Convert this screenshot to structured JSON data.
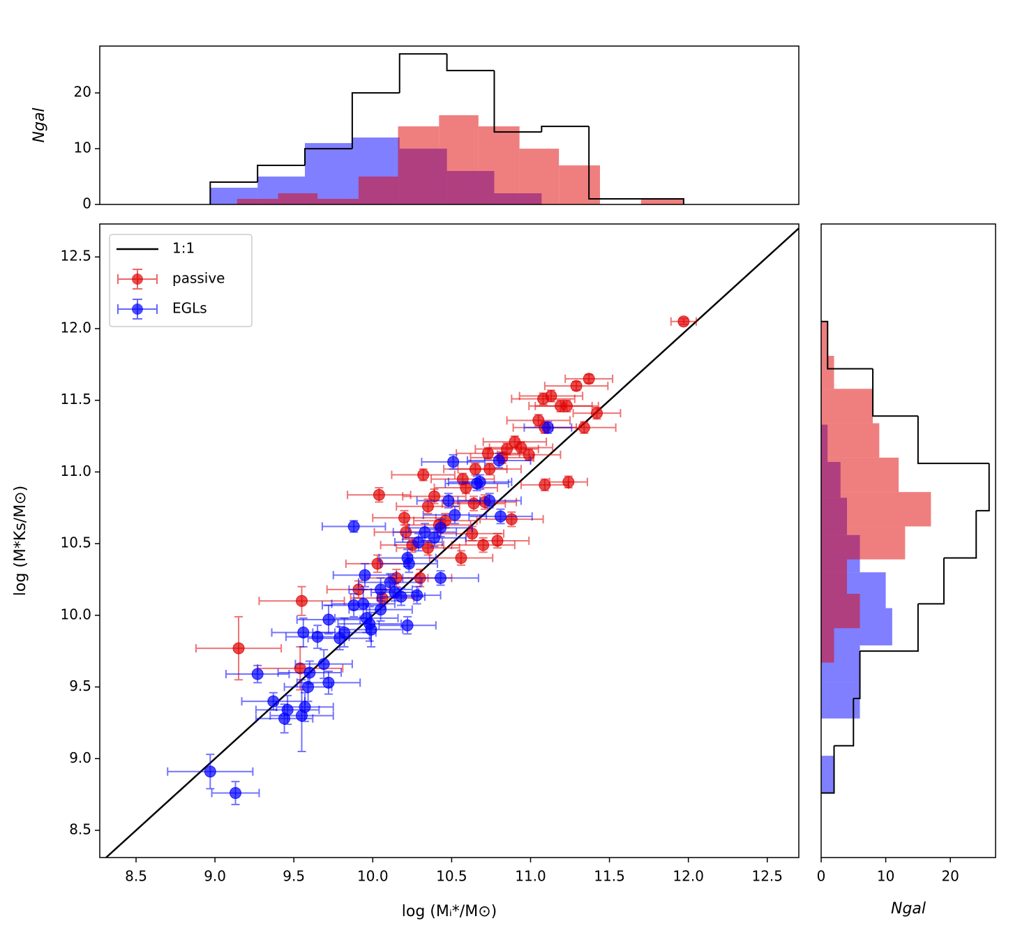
{
  "chart_data": [
    {
      "type": "scatter",
      "xlabel": "log (Mᵢ*/M⊙)",
      "ylabel": "log (M*Ks/M⊙)",
      "xlim": [
        8.27,
        12.7
      ],
      "ylim": [
        8.31,
        12.73
      ],
      "xticks": [
        8.5,
        {
          "value": 9,
          "label": "9.0"
        },
        9.5,
        {
          "value": 10,
          "label": "10.0"
        },
        10.5,
        {
          "value": 11,
          "label": "11.0"
        },
        11.5,
        {
          "value": 12,
          "label": "12.0"
        },
        12.5
      ],
      "yticks": [
        8.5,
        {
          "value": 9,
          "label": "9.0"
        },
        9.5,
        {
          "value": 10,
          "label": "10.0"
        },
        10.5,
        {
          "value": 11,
          "label": "11.0"
        },
        11.5,
        {
          "value": 12,
          "label": "12.0"
        },
        12.5
      ],
      "legend": "upper left",
      "lines": [
        {
          "name": "1:1",
          "color": "#000000"
        }
      ],
      "series": [
        {
          "name": "passive",
          "color": "#e00000",
          "x": [
            11.97,
            11.37,
            11.29,
            11.13,
            11.08,
            11.19,
            11.23,
            11.42,
            11.05,
            11.09,
            11.34,
            10.9,
            10.94,
            10.85,
            10.99,
            10.73,
            10.82,
            10.74,
            10.65,
            10.57,
            10.32,
            11.09,
            11.24,
            10.59,
            10.04,
            10.39,
            10.35,
            10.71,
            10.64,
            10.88,
            10.2,
            10.46,
            10.42,
            10.21,
            10.63,
            10.79,
            10.25,
            10.7,
            10.35,
            10.56,
            10.03,
            10.3,
            10.15,
            9.91,
            9.55,
            10.06,
            9.15,
            9.54
          ],
          "y": [
            12.05,
            11.65,
            11.6,
            11.53,
            11.51,
            11.46,
            11.46,
            11.41,
            11.36,
            11.31,
            11.31,
            11.21,
            11.17,
            11.16,
            11.12,
            11.13,
            11.1,
            11.02,
            11.02,
            10.95,
            10.98,
            10.91,
            10.93,
            10.89,
            10.84,
            10.83,
            10.76,
            10.79,
            10.78,
            10.67,
            10.68,
            10.66,
            10.63,
            10.58,
            10.57,
            10.52,
            10.49,
            10.49,
            10.47,
            10.4,
            10.36,
            10.26,
            10.26,
            10.18,
            10.1,
            10.12,
            9.77,
            9.63
          ],
          "xerr": [
            0.08,
            0.15,
            0.2,
            0.2,
            0.2,
            0.2,
            0.2,
            0.15,
            0.2,
            0.2,
            0.2,
            0.2,
            0.2,
            0.2,
            0.2,
            0.2,
            0.2,
            0.2,
            0.2,
            0.2,
            0.2,
            0.15,
            0.12,
            0.2,
            0.2,
            0.2,
            0.2,
            0.2,
            0.2,
            0.2,
            0.2,
            0.2,
            0.2,
            0.2,
            0.2,
            0.2,
            0.2,
            0.2,
            0.2,
            0.2,
            0.2,
            0.2,
            0.2,
            0.2,
            0.27,
            0.2,
            0.27,
            0.27
          ],
          "yerr": [
            0.02,
            0.03,
            0.03,
            0.04,
            0.04,
            0.04,
            0.04,
            0.04,
            0.04,
            0.04,
            0.04,
            0.04,
            0.04,
            0.04,
            0.04,
            0.04,
            0.04,
            0.04,
            0.04,
            0.04,
            0.04,
            0.04,
            0.04,
            0.04,
            0.05,
            0.05,
            0.05,
            0.05,
            0.05,
            0.05,
            0.05,
            0.05,
            0.05,
            0.05,
            0.05,
            0.05,
            0.05,
            0.05,
            0.05,
            0.05,
            0.06,
            0.06,
            0.06,
            0.06,
            0.1,
            0.06,
            0.22,
            0.15
          ]
        },
        {
          "name": "EGLs",
          "color": "#0000ff",
          "x": [
            8.97,
            9.13,
            9.27,
            9.37,
            9.44,
            9.46,
            9.55,
            9.56,
            9.57,
            9.59,
            9.6,
            9.65,
            9.69,
            9.72,
            9.72,
            9.79,
            9.82,
            9.88,
            9.88,
            9.95,
            9.94,
            9.96,
            9.98,
            9.99,
            10.05,
            10.05,
            10.11,
            10.14,
            10.18,
            10.22,
            10.22,
            10.23,
            10.28,
            10.29,
            10.33,
            10.39,
            10.43,
            10.43,
            10.48,
            10.52,
            10.51,
            10.66,
            10.68,
            10.74,
            10.8,
            10.81,
            11.11
          ],
          "y": [
            8.91,
            8.76,
            9.59,
            9.4,
            9.28,
            9.34,
            9.3,
            9.88,
            9.36,
            9.5,
            9.6,
            9.85,
            9.66,
            9.53,
            9.97,
            9.84,
            9.88,
            10.62,
            10.07,
            10.28,
            10.08,
            9.98,
            9.94,
            9.9,
            10.18,
            10.04,
            10.23,
            10.16,
            10.13,
            10.4,
            9.93,
            10.36,
            10.14,
            10.51,
            10.58,
            10.54,
            10.26,
            10.61,
            10.8,
            10.7,
            11.07,
            10.92,
            10.93,
            10.8,
            11.08,
            10.69,
            11.31
          ],
          "xerr": [
            0.27,
            0.15,
            0.2,
            0.2,
            0.18,
            0.2,
            0.2,
            0.2,
            0.18,
            0.15,
            0.2,
            0.2,
            0.18,
            0.2,
            0.2,
            0.2,
            0.2,
            0.2,
            0.2,
            0.2,
            0.2,
            0.2,
            0.2,
            0.2,
            0.2,
            0.2,
            0.2,
            0.15,
            0.15,
            0.18,
            0.18,
            0.18,
            0.15,
            0.15,
            0.2,
            0.2,
            0.24,
            0.2,
            0.2,
            0.2,
            0.2,
            0.2,
            0.2,
            0.2,
            0.2,
            0.2,
            0.15
          ],
          "yerr": [
            0.12,
            0.08,
            0.06,
            0.06,
            0.1,
            0.1,
            0.25,
            0.1,
            0.1,
            0.1,
            0.08,
            0.08,
            0.1,
            0.08,
            0.1,
            0.08,
            0.1,
            0.04,
            0.08,
            0.08,
            0.1,
            0.1,
            0.12,
            0.12,
            0.08,
            0.08,
            0.06,
            0.06,
            0.06,
            0.06,
            0.06,
            0.06,
            0.06,
            0.06,
            0.06,
            0.06,
            0.05,
            0.06,
            0.05,
            0.06,
            0.05,
            0.05,
            0.05,
            0.05,
            0.05,
            0.05,
            0.04
          ]
        }
      ]
    },
    {
      "type": "histogram",
      "orientation": "vertical",
      "ylabel": "Ngal",
      "xlim": [
        8.27,
        12.7
      ],
      "ylim": [
        0,
        28.4
      ],
      "yticks": [
        0,
        10,
        20
      ],
      "series": [
        {
          "histtype": "bar",
          "color": "#0000ff",
          "bins": [
            8.97,
            9.27,
            9.57,
            9.87,
            10.17,
            10.47,
            10.77,
            11.07
          ],
          "counts": [
            3,
            5,
            11,
            12,
            10,
            6,
            2
          ]
        },
        {
          "histtype": "bar",
          "color": "#e00000",
          "bins": [
            9.14,
            9.4,
            9.65,
            9.91,
            10.16,
            10.42,
            10.67,
            10.93,
            11.18,
            11.44,
            11.7,
            11.97
          ],
          "counts": [
            1,
            2,
            1,
            5,
            14,
            16,
            14,
            10,
            7,
            0,
            1
          ]
        },
        {
          "histtype": "step",
          "color": "#000000",
          "bins": [
            8.97,
            9.27,
            9.57,
            9.87,
            10.17,
            10.47,
            10.77,
            11.07,
            11.37,
            11.67,
            11.97
          ],
          "counts": [
            4,
            7,
            10,
            20,
            27,
            24,
            13,
            14,
            1,
            1
          ]
        }
      ]
    },
    {
      "type": "histogram",
      "orientation": "horizontal",
      "xlabel": "Ngal",
      "xlim": [
        0,
        27
      ],
      "ylim": [
        8.31,
        12.73
      ],
      "xticks": [
        0,
        10,
        20
      ],
      "series": [
        {
          "histtype": "bar",
          "color": "#0000ff",
          "bins": [
            8.76,
            9.02,
            9.28,
            9.53,
            9.79,
            10.05,
            10.3,
            10.56,
            10.82,
            11.07,
            11.33
          ],
          "counts": [
            2,
            0,
            6,
            6,
            11,
            10,
            6,
            4,
            3,
            1
          ]
        },
        {
          "histtype": "bar",
          "color": "#e00000",
          "bins": [
            9.67,
            9.91,
            10.15,
            10.39,
            10.62,
            10.86,
            11.1,
            11.34,
            11.58,
            11.81,
            12.05
          ],
          "counts": [
            2,
            6,
            4,
            13,
            17,
            12,
            9,
            8,
            2,
            1
          ]
        },
        {
          "histtype": "step",
          "color": "#000000",
          "bins": [
            8.76,
            9.09,
            9.42,
            9.75,
            10.08,
            10.4,
            10.73,
            11.06,
            11.39,
            11.72,
            12.05
          ],
          "counts": [
            2,
            5,
            6,
            15,
            19,
            24,
            26,
            15,
            8,
            1
          ]
        }
      ]
    }
  ]
}
